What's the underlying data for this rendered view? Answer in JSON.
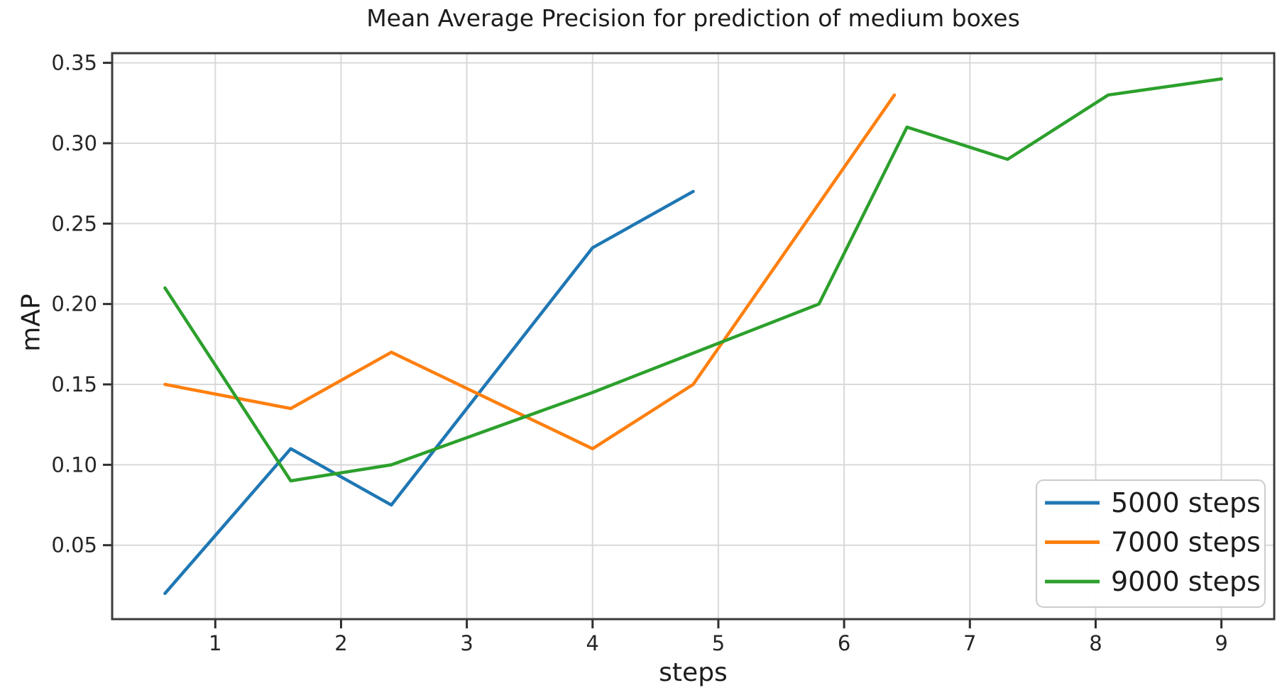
{
  "chart_data": {
    "type": "line",
    "title": "Mean Average Precision for prediction of medium boxes",
    "xlabel": "steps",
    "ylabel": "mAP",
    "xlim": [
      0.18,
      9.42
    ],
    "ylim": [
      0.004,
      0.356
    ],
    "grid": true,
    "x_ticks": [
      1,
      2,
      3,
      4,
      5,
      6,
      7,
      8,
      9
    ],
    "x_tick_labels": [
      "1",
      "2",
      "3",
      "4",
      "5",
      "6",
      "7",
      "8",
      "9"
    ],
    "y_ticks": [
      0.05,
      0.1,
      0.15,
      0.2,
      0.25,
      0.3,
      0.35
    ],
    "y_tick_labels": [
      "0.05",
      "0.10",
      "0.15",
      "0.20",
      "0.25",
      "0.30",
      "0.35"
    ],
    "legend": {
      "position": "lower right",
      "entries": [
        "5000 steps",
        "7000 steps",
        "9000 steps"
      ]
    },
    "series": [
      {
        "name": "5000 steps",
        "color": "#1f77b4",
        "x": [
          0.6,
          1.6,
          2.4,
          4.0,
          4.8
        ],
        "y": [
          0.02,
          0.11,
          0.075,
          0.235,
          0.27
        ]
      },
      {
        "name": "7000 steps",
        "color": "#ff7f0e",
        "x": [
          0.6,
          1.6,
          2.4,
          4.0,
          4.8,
          6.4
        ],
        "y": [
          0.15,
          0.135,
          0.17,
          0.11,
          0.15,
          0.33
        ]
      },
      {
        "name": "9000 steps",
        "color": "#2ca02c",
        "x": [
          0.6,
          1.6,
          2.4,
          4.0,
          5.8,
          6.5,
          7.3,
          8.1,
          9.0
        ],
        "y": [
          0.21,
          0.09,
          0.1,
          0.145,
          0.2,
          0.31,
          0.29,
          0.33,
          0.34
        ]
      }
    ],
    "style": {
      "grid_color": "#d9d9d9",
      "spine_color": "#3b3b3b",
      "tick_color": "#2e2e2e",
      "legend_border_color": "#cccccc"
    }
  }
}
